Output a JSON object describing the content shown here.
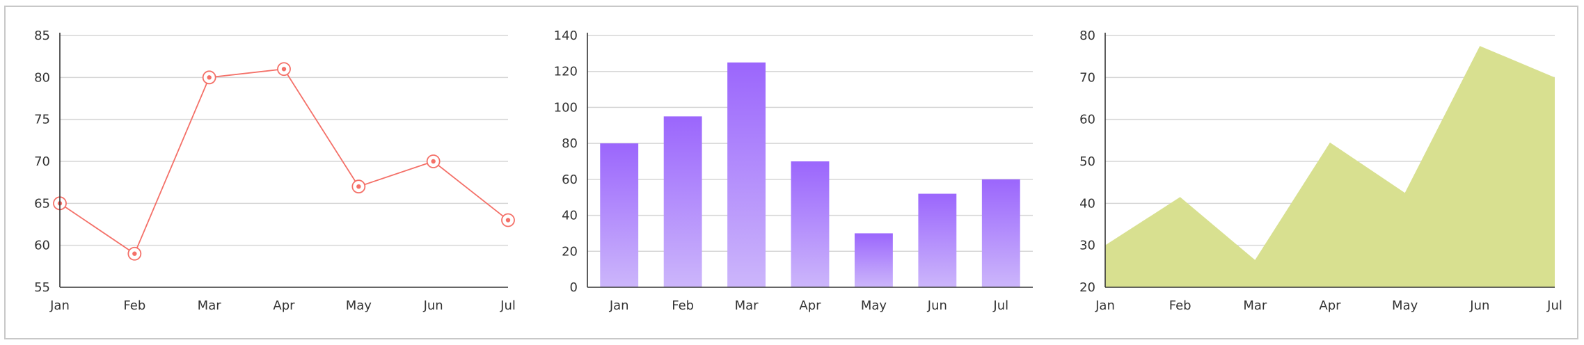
{
  "colors": {
    "line": "#f47068",
    "bar_top": "#9b66fc",
    "bar_bottom": "#ccb6fb",
    "area": "#d8e090",
    "grid": "#d6d6d6",
    "axis": "#333333"
  },
  "chart_data": [
    {
      "type": "line",
      "categories": [
        "Jan",
        "Feb",
        "Mar",
        "Apr",
        "May",
        "Jun",
        "Jul"
      ],
      "values": [
        65,
        59,
        80,
        81,
        67,
        70,
        63
      ],
      "ylim": [
        55,
        85
      ],
      "yticks": [
        55,
        60,
        65,
        70,
        75,
        80,
        85
      ],
      "grid": true,
      "legend": "none",
      "marker": "ring"
    },
    {
      "type": "bar",
      "categories": [
        "Jan",
        "Feb",
        "Mar",
        "Apr",
        "May",
        "Jun",
        "Jul"
      ],
      "values": [
        80,
        95,
        125,
        70,
        30,
        52,
        60
      ],
      "ylim": [
        0,
        140
      ],
      "yticks": [
        0,
        20,
        40,
        60,
        80,
        100,
        120,
        140
      ],
      "grid": true,
      "legend": "none",
      "fill": "vertical gradient"
    },
    {
      "type": "area",
      "categories": [
        "Jan",
        "Feb",
        "Mar",
        "Apr",
        "May",
        "Jun",
        "Jul"
      ],
      "values": [
        30,
        41.5,
        26.5,
        54.5,
        42.5,
        77.5,
        70
      ],
      "ylim": [
        20,
        80
      ],
      "yticks": [
        20,
        30,
        40,
        50,
        60,
        70,
        80
      ],
      "grid": true,
      "legend": "none"
    }
  ]
}
